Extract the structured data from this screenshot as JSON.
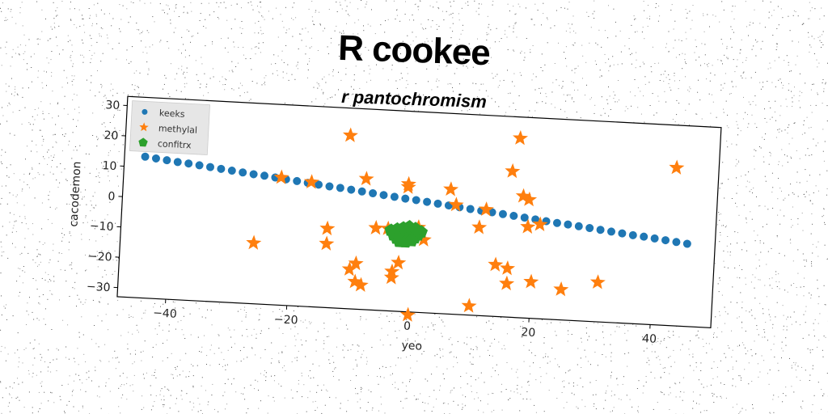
{
  "chart_data": {
    "type": "scatter",
    "title": "R cookee",
    "subtitle": "r pantochromism",
    "xlabel": "yeo",
    "ylabel": "cacodemon",
    "xlim": [
      -48,
      50
    ],
    "ylim": [
      -33,
      33
    ],
    "xticks": [
      -40,
      -20,
      0,
      20,
      40
    ],
    "yticks": [
      -30,
      -20,
      -10,
      0,
      10,
      20,
      30
    ],
    "grid": false,
    "legend_position": "top-left",
    "series": [
      {
        "name": "keeks",
        "marker": "circle",
        "color": "#1f77b4",
        "x": [
          -44.6,
          -42.8,
          -41.0,
          -39.2,
          -37.4,
          -35.6,
          -33.8,
          -32.0,
          -30.2,
          -28.4,
          -26.6,
          -24.8,
          -23.0,
          -21.2,
          -19.4,
          -17.6,
          -15.8,
          -14.0,
          -12.2,
          -10.4,
          -8.6,
          -6.8,
          -5.0,
          -3.2,
          -1.4,
          0.4,
          2.2,
          4.0,
          5.8,
          7.6,
          9.4,
          11.2,
          13.0,
          14.8,
          16.6,
          18.4,
          20.2,
          22.0,
          23.8,
          25.6,
          27.4,
          29.2,
          31.0,
          32.8,
          34.6,
          36.4,
          38.2,
          40.0,
          41.8,
          43.6,
          45.4
        ],
        "y": [
          13.5,
          13.1,
          12.7,
          12.3,
          12.0,
          11.6,
          11.2,
          10.8,
          10.4,
          10.0,
          9.6,
          9.3,
          8.9,
          8.5,
          8.1,
          7.7,
          7.3,
          6.9,
          6.6,
          6.2,
          5.8,
          5.4,
          5.0,
          4.6,
          4.2,
          3.9,
          3.5,
          3.1,
          2.7,
          2.3,
          1.9,
          1.5,
          1.2,
          0.8,
          0.4,
          0.0,
          -0.4,
          -0.8,
          -1.2,
          -1.5,
          -1.9,
          -2.3,
          -2.7,
          -3.1,
          -3.5,
          -3.9,
          -4.2,
          -4.6,
          -5.0,
          -5.4,
          -5.8
        ]
      },
      {
        "name": "methylal",
        "marker": "star",
        "color": "#ff7f0e",
        "x": [
          -11,
          -8,
          -22,
          -17,
          -26,
          -14,
          -14,
          -10,
          -9,
          -9,
          -8,
          -6,
          -4,
          -3,
          -3,
          -2,
          -1,
          -1,
          0,
          1,
          2,
          6,
          7,
          10,
          11,
          12,
          14,
          16,
          16,
          16,
          17,
          18,
          19,
          19,
          20,
          21,
          25,
          31,
          43
        ],
        "y": [
          24,
          10,
          9,
          8,
          -13,
          -7,
          -12,
          -20,
          -18,
          -24,
          -25,
          -6,
          -6,
          -22,
          -20,
          -17,
          8,
          9,
          -34,
          -5,
          -9,
          8,
          3,
          -30,
          -4,
          2,
          -16,
          -22,
          -17,
          15,
          26,
          7,
          6,
          -3,
          -21,
          -2,
          -23,
          -20,
          19
        ]
      },
      {
        "name": "confitrx",
        "marker": "pentagon",
        "color": "#2ca02c",
        "x": [
          -3.5,
          -2.5,
          -1.5,
          -0.5,
          0.5,
          1.5,
          -3.0,
          -2.0,
          -1.0,
          0.0,
          1.0,
          -2.5,
          -1.5,
          -0.5,
          0.5,
          -2.0,
          -1.0,
          0.0
        ],
        "y": [
          -6.5,
          -6.0,
          -5.5,
          -5.0,
          -5.5,
          -6.5,
          -8.0,
          -7.5,
          -7.0,
          -7.0,
          -7.5,
          -9.0,
          -9.0,
          -8.5,
          -8.5,
          -10.0,
          -10.0,
          -9.5
        ]
      }
    ]
  }
}
